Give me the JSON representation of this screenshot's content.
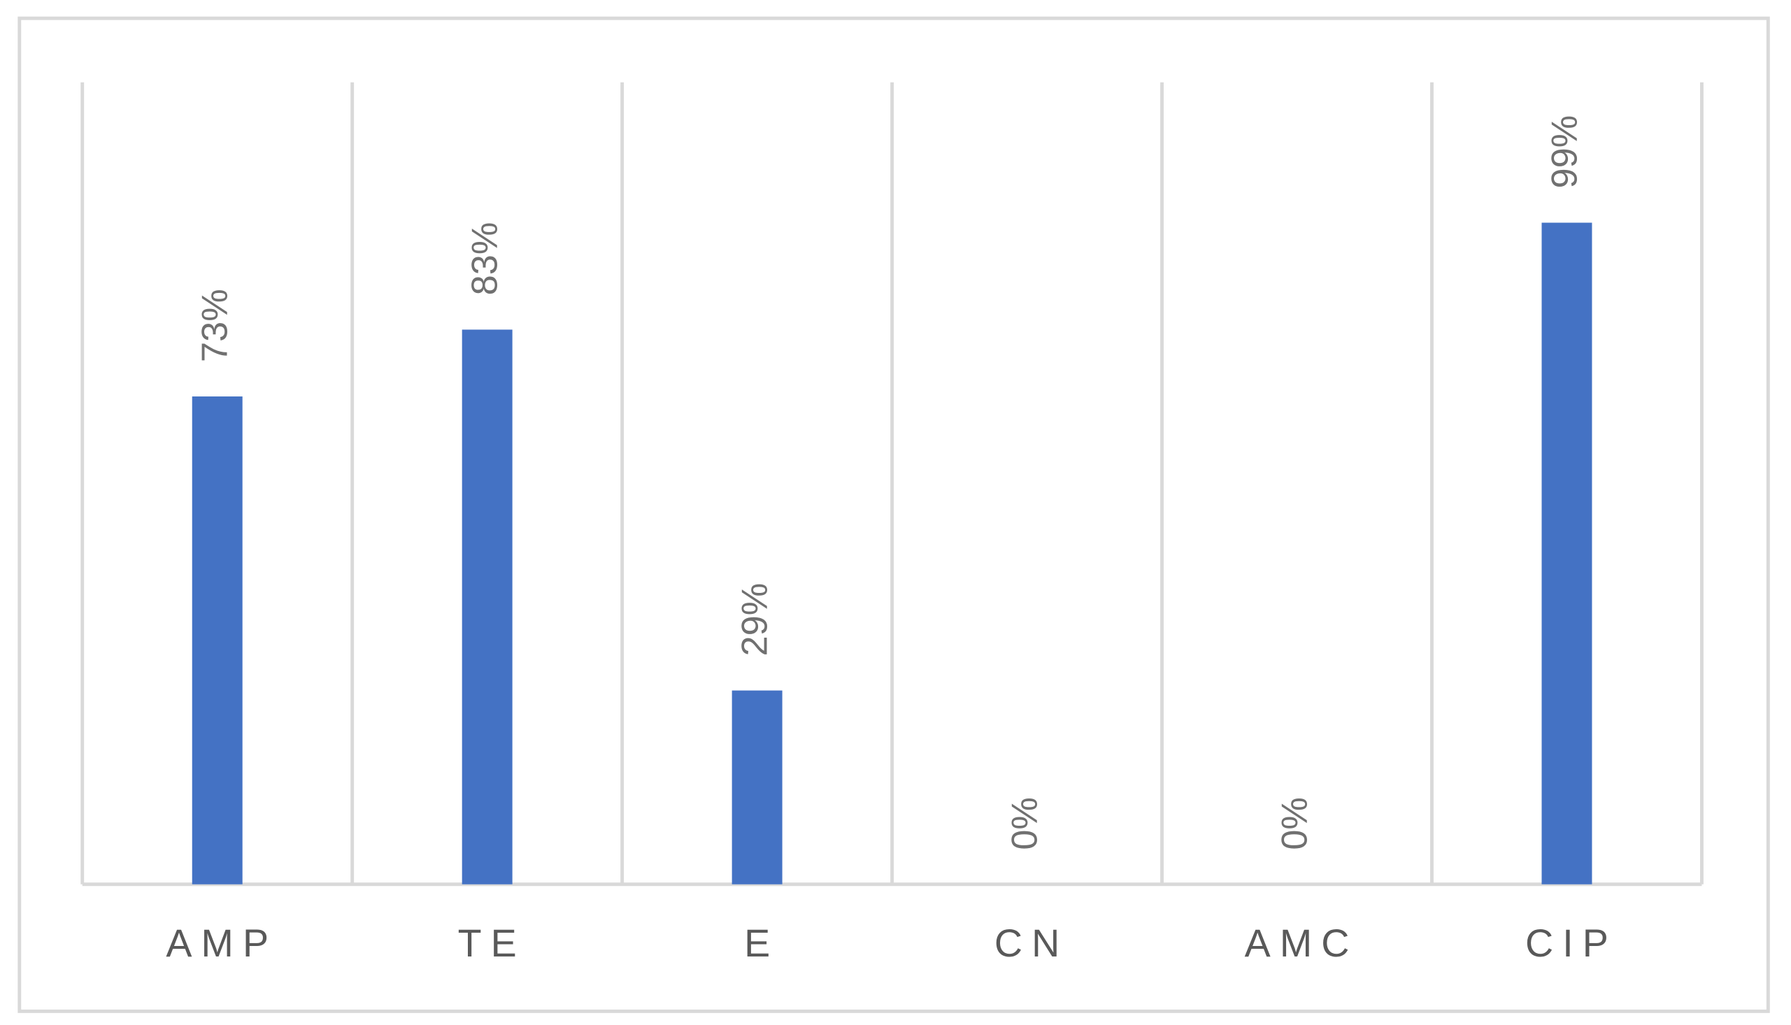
{
  "chart_data": {
    "type": "bar",
    "categories": [
      "AMP",
      "TE",
      "E",
      "CN",
      "AMC",
      "CIP"
    ],
    "values": [
      73,
      83,
      29,
      0,
      0,
      99
    ],
    "value_labels": [
      "73%",
      "83%",
      "29%",
      "0%",
      "0%",
      "99%"
    ],
    "color": "#4472c4",
    "ylim": [
      0,
      120
    ]
  }
}
